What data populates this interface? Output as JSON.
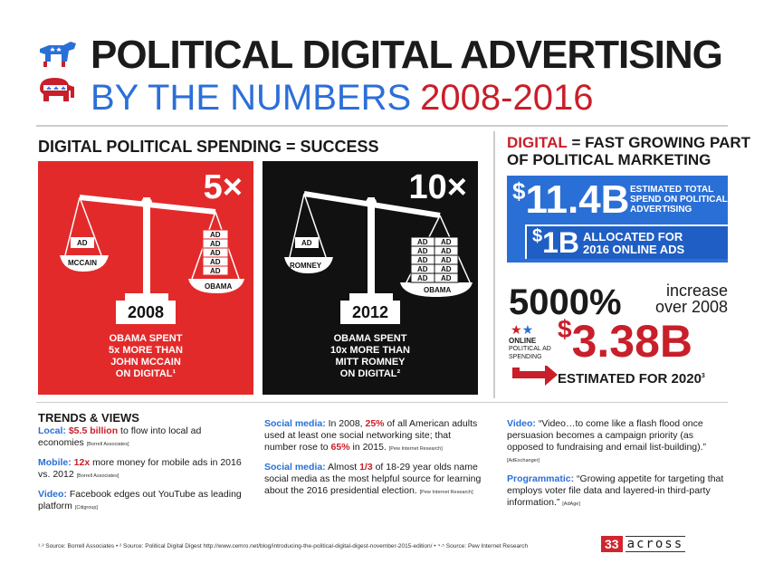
{
  "header": {
    "title": "POLITICAL DIGITAL ADVERTISING",
    "subtitle": "BY THE NUMBERS",
    "years": "2008-2016"
  },
  "spending": {
    "title": "DIGITAL POLITICAL SPENDING = SUCCESS",
    "panels": [
      {
        "multiplier": "5×",
        "year": "2008",
        "left_name": "MCCAIN",
        "right_name": "OBAMA",
        "ad_label": "AD",
        "caption_lines": [
          "OBAMA SPENT",
          "5x MORE THAN",
          "JOHN MCCAIN",
          "ON DIGITAL¹"
        ]
      },
      {
        "multiplier": "10×",
        "year": "2012",
        "left_name": "ROMNEY",
        "right_name": "OBAMA",
        "ad_label": "AD",
        "caption_lines": [
          "OBAMA SPENT",
          "10x MORE THAN",
          "MITT ROMNEY",
          "ON DIGITAL²"
        ]
      }
    ]
  },
  "right": {
    "head_red": "DIGITAL",
    "head_rest1": " = FAST GROWING PART",
    "head_rest2": "OF POLITICAL MARKETING",
    "total_dollar": "$",
    "total_amount": "11.4B",
    "total_label_lines": [
      "ESTIMATED TOTAL",
      "SPEND ON POLITICAL",
      "ADVERTISING"
    ],
    "online_dollar": "$",
    "online_amount": "1B",
    "online_label1": "ALLOCATED FOR",
    "online_label2": "2016 ONLINE ADS",
    "pct": "5000%",
    "pct_sub1": "increase",
    "pct_sub2": "over 2008",
    "online_small1": "ONLINE",
    "online_small2": "POLITICAL AD",
    "online_small3": "SPENDING",
    "big_dollar": "$",
    "big_amount": "3.38B",
    "est_2020": "ESTIMATED FOR 2020",
    "est_2020_sup": "3"
  },
  "trends": {
    "title": "TRENDS & VIEWS",
    "local_lead": "Local:",
    "local_em": "$5.5 billion",
    "local_text": " to flow into local ad economies ",
    "local_src": "[Borrell Associates]",
    "mobile_lead": "Mobile:",
    "mobile_em": "12x",
    "mobile_text": " more money for mobile ads in 2016 vs. 2012 ",
    "mobile_src": "[Borrell Associates]",
    "video1_lead": "Video:",
    "video1_text": " Facebook edges out YouTube as leading platform ",
    "video1_src": "[Citigroup]",
    "social1_lead": "Social media:",
    "social1_text_a": " In 2008, ",
    "social1_em1": "25%",
    "social1_text_b": " of all American adults used at least one social networking site; that number rose to ",
    "social1_em2": "65%",
    "social1_text_c": " in 2015. ",
    "social1_src": "[Pew Internet Research]",
    "social2_lead": "Social media:",
    "social2_text_a": " Almost ",
    "social2_em": "1/3",
    "social2_text_b": " of 18-29 year olds name social media as the most helpful source for learning about the 2016 presidential election. ",
    "social2_src": "[Pew Internet Research]",
    "video2_lead": "Video:",
    "video2_text": " “Video…to come like a flash flood once persuasion becomes a campaign priority (as opposed to fundraising and email list-building).” ",
    "video2_src": "[AdExchanger]",
    "prog_lead": "Programmatic:",
    "prog_text": " “Growing appetite for targeting that employs voter file data and layered-in third-party information.” ",
    "prog_src": "[AdAge]"
  },
  "footer": {
    "sources": "¹·³ Source: Borrell Associates  •  ² Source: Political Digital Digest http://www.cemro.net/blog/introducing-the-political-digital-digest-november-2015-edition/  •  ⁴·⁵ Source: Pew Internet Research",
    "brand_num": "33",
    "brand_word": "across"
  },
  "colors": {
    "red": "#e32a2a",
    "blue": "#2a6fd6",
    "black": "#111111"
  }
}
